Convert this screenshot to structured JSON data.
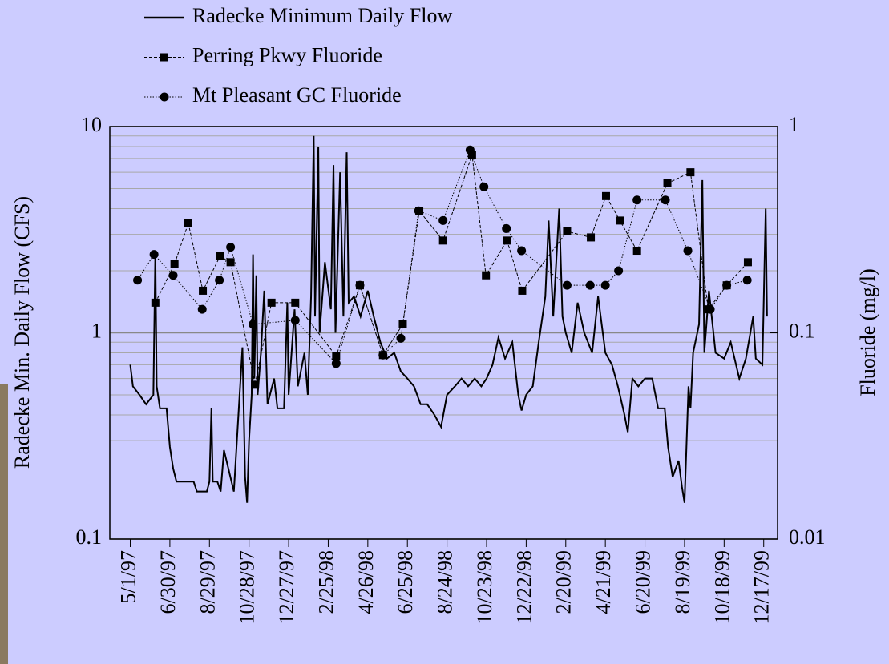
{
  "chart_data": {
    "type": "line",
    "log_scale": true,
    "grid": true,
    "legend": "top",
    "ylabel": "Radecke Min. Daily Flow (CFS)",
    "y2label": "Fluoride (mg/l)",
    "xlim": [
      "3/31/97",
      "1/7/00"
    ],
    "xticks": [
      "5/1/97",
      "6/30/97",
      "8/29/97",
      "10/28/97",
      "12/27/97",
      "2/25/98",
      "4/26/98",
      "6/25/98",
      "8/24/98",
      "10/23/98",
      "12/22/98",
      "2/20/99",
      "4/21/99",
      "6/20/99",
      "8/19/99",
      "10/18/99",
      "12/17/99"
    ],
    "ylim": [
      0.1,
      10
    ],
    "yticks": [
      0.1,
      1,
      10
    ],
    "yminorticks": [
      0.2,
      0.3,
      0.4,
      0.5,
      0.6,
      0.7,
      0.8,
      0.9,
      2,
      3,
      4,
      5,
      6,
      7,
      8,
      9
    ],
    "y2lim": [
      0.01,
      1
    ],
    "y2ticks": [
      0.01,
      0.1,
      1
    ],
    "series": [
      {
        "name": "Radecke Minimum Daily Flow",
        "color": "#000000",
        "line_style": "solid",
        "marker": "none",
        "x": [
          "5/1/97",
          "5/5/97",
          "5/15/97",
          "5/25/97",
          "6/5/97",
          "6/8/97",
          "6/10/97",
          "6/15/97",
          "6/25/97",
          "6/30/97",
          "7/5/97",
          "7/10/97",
          "7/25/97",
          "8/5/97",
          "8/10/97",
          "8/25/97",
          "8/29/97",
          "9/1/97",
          "9/3/97",
          "9/10/97",
          "9/15/97",
          "9/20/97",
          "10/5/97",
          "10/18/97",
          "10/22/97",
          "10/25/97",
          "10/28/97",
          "11/1/97",
          "11/3/97",
          "11/5/97",
          "11/8/97",
          "11/10/97",
          "11/15/97",
          "11/20/97",
          "11/25/97",
          "12/5/97",
          "12/10/97",
          "12/20/97",
          "12/25/97",
          "12/27/97",
          "1/5/98",
          "1/10/98",
          "1/20/98",
          "1/25/98",
          "1/30/98",
          "2/3/98",
          "2/5/98",
          "2/10/98",
          "2/12/98",
          "2/20/98",
          "3/1/98",
          "3/5/98",
          "3/8/98",
          "3/15/98",
          "3/20/98",
          "3/25/98",
          "3/28/98",
          "4/5/98",
          "4/15/98",
          "4/26/98",
          "5/5/98",
          "5/15/98",
          "5/25/98",
          "6/5/98",
          "6/15/98",
          "6/25/98",
          "7/5/98",
          "7/15/98",
          "7/25/98",
          "8/5/98",
          "8/15/98",
          "8/24/98",
          "9/5/98",
          "9/15/98",
          "9/25/98",
          "10/5/98",
          "10/15/98",
          "10/23/98",
          "11/1/98",
          "11/10/98",
          "11/20/98",
          "12/1/98",
          "12/10/98",
          "12/15/98",
          "12/22/98",
          "1/1/99",
          "1/10/99",
          "1/20/99",
          "1/25/99",
          "2/1/99",
          "2/10/99",
          "2/15/99",
          "2/20/99",
          "3/1/99",
          "3/10/99",
          "3/20/99",
          "4/1/99",
          "4/10/99",
          "4/21/99",
          "5/1/99",
          "5/10/99",
          "5/20/99",
          "5/25/99",
          "6/1/99",
          "6/10/99",
          "6/20/99",
          "7/1/99",
          "7/10/99",
          "7/20/99",
          "7/25/99",
          "8/1/99",
          "8/10/99",
          "8/15/99",
          "8/19/99",
          "8/25/99",
          "8/28/99",
          "9/1/99",
          "9/10/99",
          "9/15/99",
          "9/18/99",
          "9/25/99",
          "10/5/99",
          "10/18/99",
          "10/28/99",
          "11/10/99",
          "11/20/99",
          "12/1/99",
          "12/5/99",
          "12/15/99",
          "12/20/99",
          "12/22/99"
        ],
        "values": [
          0.7,
          0.55,
          0.5,
          0.45,
          0.5,
          2.5,
          0.55,
          0.43,
          0.43,
          0.28,
          0.22,
          0.19,
          0.19,
          0.19,
          0.17,
          0.17,
          0.19,
          0.43,
          0.19,
          0.19,
          0.17,
          0.27,
          0.17,
          0.85,
          0.2,
          0.15,
          0.3,
          0.5,
          2.4,
          0.6,
          1.9,
          0.5,
          0.8,
          1.6,
          0.45,
          0.6,
          0.43,
          0.43,
          1.4,
          0.5,
          1.3,
          0.55,
          0.8,
          0.5,
          1.5,
          9.0,
          1.2,
          8.0,
          1.0,
          2.2,
          1.3,
          6.5,
          1.0,
          6.0,
          1.2,
          7.5,
          1.4,
          1.5,
          1.2,
          1.6,
          1.2,
          0.9,
          0.75,
          0.8,
          0.65,
          0.6,
          0.55,
          0.45,
          0.45,
          0.4,
          0.35,
          0.5,
          0.55,
          0.6,
          0.55,
          0.6,
          0.55,
          0.6,
          0.7,
          0.95,
          0.75,
          0.9,
          0.5,
          0.42,
          0.5,
          0.55,
          0.9,
          1.5,
          3.5,
          1.2,
          4.0,
          1.2,
          1.0,
          0.8,
          1.4,
          1.0,
          0.8,
          1.5,
          0.8,
          0.7,
          0.55,
          0.4,
          0.33,
          0.6,
          0.55,
          0.6,
          0.6,
          0.43,
          0.43,
          0.28,
          0.2,
          0.24,
          0.18,
          0.15,
          0.55,
          0.43,
          0.8,
          1.1,
          5.5,
          0.8,
          1.6,
          0.8,
          0.75,
          0.9,
          0.6,
          0.75,
          1.2,
          0.75,
          0.7,
          4.0,
          1.2
        ]
      },
      {
        "name": "Perring Pkwy Fluoride",
        "color": "#000000",
        "line_style": "dashed",
        "marker": "square",
        "axis": "y2",
        "x": [
          "6/8/97",
          "7/7/97",
          "7/28/97",
          "8/19/97",
          "9/14/97",
          "9/30/97",
          "11/6/97",
          "12/1/97",
          "1/6/98",
          "3/9/98",
          "4/14/98",
          "5/19/98",
          "6/18/98",
          "7/13/98",
          "8/18/98",
          "10/1/98",
          "10/22/98",
          "11/23/98",
          "12/16/98",
          "2/22/99",
          "3/30/99",
          "4/22/99",
          "5/13/99",
          "6/8/99",
          "7/24/99",
          "8/28/99",
          "9/24/99",
          "10/22/99",
          "11/23/99"
        ],
        "values": [
          0.14,
          0.215,
          0.34,
          0.16,
          0.235,
          0.22,
          0.056,
          0.14,
          0.14,
          0.077,
          0.17,
          0.078,
          0.11,
          0.39,
          0.28,
          0.73,
          0.19,
          0.28,
          0.16,
          0.31,
          0.29,
          0.46,
          0.35,
          0.25,
          0.53,
          0.6,
          0.13,
          0.17,
          0.22
        ]
      },
      {
        "name": "Mt Pleasant GC Fluoride",
        "color": "#000000",
        "line_style": "dotted",
        "marker": "circle",
        "axis": "y2",
        "x": [
          "5/12/97",
          "6/6/97",
          "7/5/97",
          "8/18/97",
          "9/13/97",
          "9/30/97",
          "11/3/97",
          "1/6/98",
          "3/9/98",
          "4/14/98",
          "5/19/98",
          "6/15/98",
          "7/12/98",
          "8/18/98",
          "9/28/98",
          "10/19/98",
          "11/22/98",
          "12/15/98",
          "2/22/99",
          "3/29/99",
          "4/21/99",
          "5/11/99",
          "6/8/99",
          "7/21/99",
          "8/24/99",
          "9/27/99",
          "10/22/99",
          "11/22/99"
        ],
        "values": [
          0.18,
          0.24,
          0.19,
          0.13,
          0.18,
          0.26,
          0.11,
          0.115,
          0.071,
          0.17,
          0.078,
          0.094,
          0.39,
          0.35,
          0.77,
          0.51,
          0.32,
          0.25,
          0.17,
          0.17,
          0.17,
          0.2,
          0.44,
          0.44,
          0.25,
          0.13,
          0.17,
          0.18
        ]
      }
    ]
  }
}
